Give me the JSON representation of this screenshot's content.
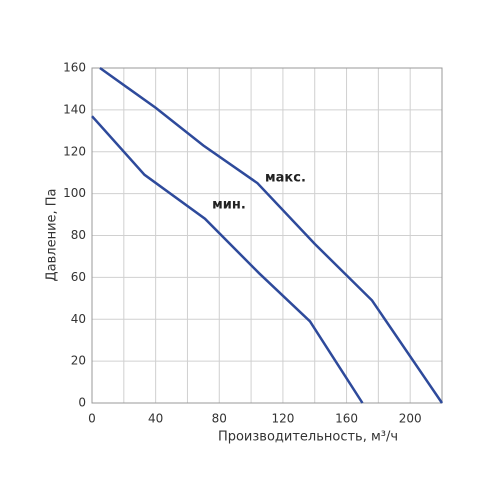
{
  "chart_data": {
    "type": "line",
    "x_label": "Производительность, м³/ч",
    "y_label": "Давление, Па",
    "series": [
      {
        "name": "макс.",
        "color": "#2e4a9b",
        "x": [
          5,
          40,
          70,
          104,
          140,
          176,
          220
        ],
        "values": [
          160,
          141,
          123,
          105,
          76,
          49,
          0
        ]
      },
      {
        "name": "мин.",
        "color": "#2e4a9b",
        "x": [
          0,
          33,
          71,
          105,
          137,
          170
        ],
        "values": [
          137,
          109,
          88,
          62,
          39,
          0
        ]
      }
    ],
    "xlim": [
      0,
      220
    ],
    "ylim": [
      0,
      160
    ],
    "xticks": [
      0,
      40,
      80,
      120,
      160,
      200
    ],
    "xgrid": [
      20,
      40,
      60,
      80,
      100,
      120,
      140,
      160,
      180,
      200
    ],
    "yticks": [
      0,
      20,
      40,
      60,
      80,
      100,
      120,
      140,
      160
    ],
    "grid": true
  }
}
